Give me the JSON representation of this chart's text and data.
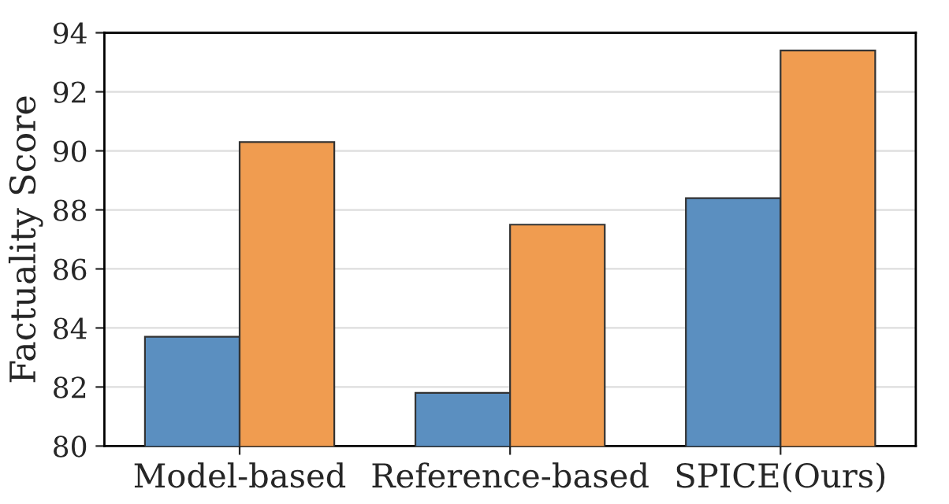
{
  "chart_data": {
    "type": "bar",
    "ylabel": "Factuality Score",
    "categories": [
      "Model-based",
      "Reference-based",
      "SPICE(Ours)"
    ],
    "series": [
      {
        "color": "#5b8fc0",
        "values": [
          83.7,
          81.8,
          88.4
        ]
      },
      {
        "color": "#f09c50",
        "values": [
          90.3,
          87.5,
          93.4
        ]
      }
    ],
    "ylim": [
      80,
      94
    ],
    "yticks": [
      80,
      82,
      84,
      86,
      88,
      90,
      92,
      94
    ],
    "grid": "y"
  }
}
